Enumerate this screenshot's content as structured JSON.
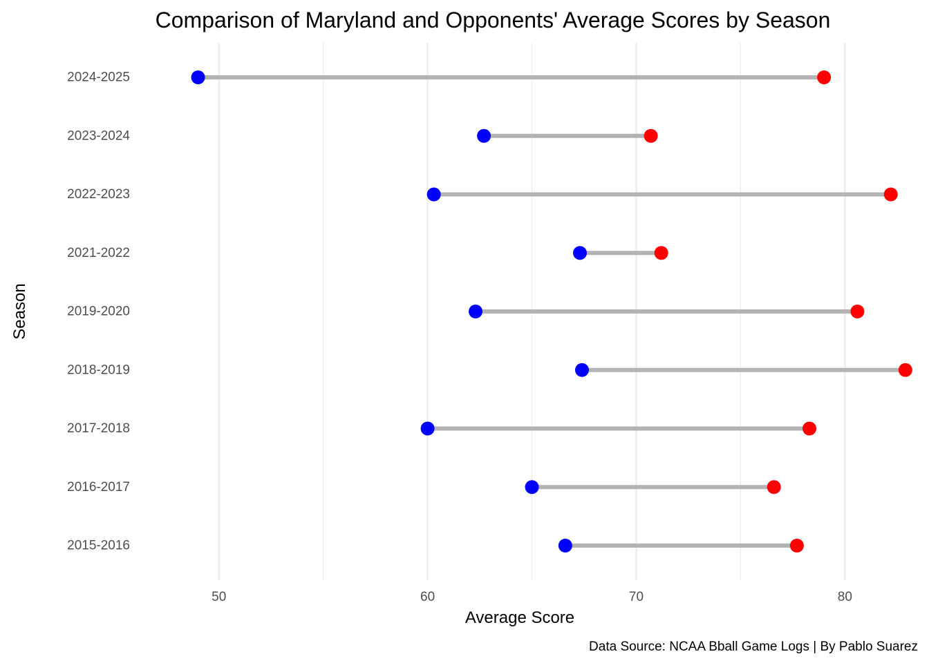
{
  "chart_data": {
    "type": "dumbbell",
    "title": "Comparison of Maryland and Opponents' Average Scores by Season",
    "xlabel": "Average Score",
    "ylabel": "Season",
    "caption": "Data Source: NCAA Bball Game Logs | By Pablo Suarez",
    "xlim": [
      46,
      83.5
    ],
    "x_ticks": [
      50,
      60,
      70,
      80
    ],
    "x_minor_ticks": [
      55,
      65,
      75
    ],
    "grid": "vertical",
    "colors": {
      "low": "#0000ff",
      "high": "#ff0000",
      "segment": "#b3b3b3",
      "grid": "#ebebeb"
    },
    "categories": [
      "2024-2025",
      "2023-2024",
      "2022-2023",
      "2021-2022",
      "2019-2020",
      "2018-2019",
      "2017-2018",
      "2016-2017",
      "2015-2016"
    ],
    "series": [
      {
        "values": [
          49.0,
          62.7,
          60.3,
          67.3,
          62.3,
          67.4,
          60.0,
          65.0,
          66.6
        ]
      },
      {
        "values": [
          79.0,
          70.7,
          82.2,
          71.2,
          80.6,
          82.9,
          78.3,
          76.6,
          77.7
        ]
      }
    ]
  }
}
